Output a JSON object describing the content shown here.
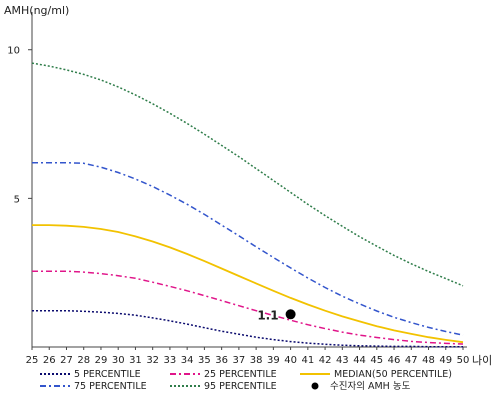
{
  "chart_data": {
    "type": "line",
    "ylabel": "AMH(ng/ml)",
    "xlabel": "나이",
    "xlim": [
      25,
      50
    ],
    "ylim": [
      0,
      11
    ],
    "x_ticks": [
      "25",
      "26",
      "27",
      "28",
      "29",
      "30",
      "31",
      "32",
      "33",
      "34",
      "35",
      "36",
      "37",
      "38",
      "39",
      "40",
      "41",
      "42",
      "43",
      "44",
      "45",
      "46",
      "47",
      "48",
      "49",
      "50"
    ],
    "y_ticks": [
      "5",
      "10"
    ],
    "grid": false,
    "legend_position": "bottom",
    "series": [
      {
        "name": "5 PERCENTILE",
        "color": "#0a0a6e",
        "dash": "dotted",
        "x": [
          25,
          26,
          27,
          28,
          29,
          30,
          31,
          32,
          33,
          34,
          35,
          36,
          37,
          38,
          39,
          40,
          41,
          42,
          43,
          44,
          45,
          46,
          47,
          48,
          49,
          50
        ],
        "y": [
          1.22,
          1.22,
          1.22,
          1.2,
          1.17,
          1.13,
          1.07,
          0.98,
          0.88,
          0.77,
          0.65,
          0.53,
          0.43,
          0.33,
          0.25,
          0.18,
          0.13,
          0.09,
          0.06,
          0.04,
          0.03,
          0.02,
          0.02,
          0.01,
          0.01,
          0.01
        ]
      },
      {
        "name": "25 PERCENTILE",
        "color": "#e0158a",
        "dash": "dashdot",
        "x": [
          25,
          26,
          27,
          28,
          29,
          30,
          31,
          32,
          33,
          34,
          35,
          36,
          37,
          38,
          39,
          40,
          41,
          42,
          43,
          44,
          45,
          46,
          47,
          48,
          49,
          50
        ],
        "y": [
          2.55,
          2.55,
          2.55,
          2.52,
          2.47,
          2.4,
          2.31,
          2.18,
          2.04,
          1.89,
          1.73,
          1.56,
          1.39,
          1.22,
          1.06,
          0.9,
          0.75,
          0.62,
          0.5,
          0.4,
          0.32,
          0.25,
          0.19,
          0.15,
          0.12,
          0.1
        ]
      },
      {
        "name": "MEDIAN(50 PERCENTILE)",
        "color": "#f2c200",
        "dash": "solid",
        "x": [
          25,
          26,
          27,
          28,
          29,
          30,
          31,
          32,
          33,
          34,
          35,
          36,
          37,
          38,
          39,
          40,
          41,
          42,
          43,
          44,
          45,
          46,
          47,
          48,
          49,
          50
        ],
        "y": [
          4.1,
          4.1,
          4.08,
          4.04,
          3.97,
          3.87,
          3.72,
          3.55,
          3.35,
          3.13,
          2.89,
          2.64,
          2.39,
          2.14,
          1.89,
          1.65,
          1.43,
          1.22,
          1.03,
          0.86,
          0.7,
          0.56,
          0.44,
          0.33,
          0.24,
          0.16
        ]
      },
      {
        "name": "75 PERCENTILE",
        "color": "#3355cc",
        "dash": "dashdot",
        "x": [
          25,
          26,
          27,
          28,
          29,
          30,
          31,
          32,
          33,
          34,
          35,
          36,
          37,
          38,
          39,
          40,
          41,
          42,
          43,
          44,
          45,
          46,
          47,
          48,
          49,
          50
        ],
        "y": [
          6.2,
          6.2,
          6.2,
          6.18,
          6.05,
          5.87,
          5.65,
          5.4,
          5.11,
          4.8,
          4.46,
          4.1,
          3.74,
          3.37,
          3.01,
          2.66,
          2.32,
          2.0,
          1.71,
          1.45,
          1.21,
          1.0,
          0.82,
          0.66,
          0.52,
          0.4
        ]
      },
      {
        "name": "95 PERCENTILE",
        "color": "#2f7d4a",
        "dash": "dotted",
        "x": [
          25,
          26,
          27,
          28,
          29,
          30,
          31,
          32,
          33,
          34,
          35,
          36,
          37,
          38,
          39,
          40,
          41,
          42,
          43,
          44,
          45,
          46,
          47,
          48,
          49,
          50
        ],
        "y": [
          9.55,
          9.45,
          9.32,
          9.17,
          8.98,
          8.75,
          8.48,
          8.18,
          7.86,
          7.52,
          7.16,
          6.78,
          6.4,
          6.0,
          5.6,
          5.2,
          4.8,
          4.42,
          4.06,
          3.71,
          3.39,
          3.08,
          2.8,
          2.54,
          2.3,
          2.06
        ]
      }
    ],
    "marker": {
      "name": "수진자의 AMH 농도",
      "x": 40,
      "y": 1.1,
      "label": "1.1",
      "color": "#000000"
    }
  }
}
